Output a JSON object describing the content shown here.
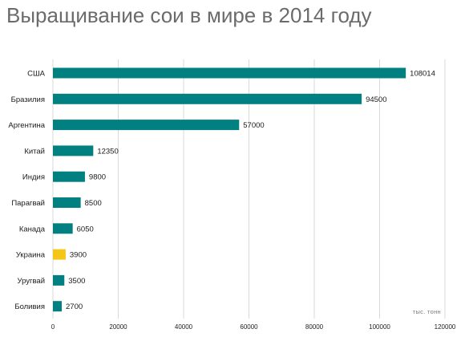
{
  "chart_data": {
    "type": "bar",
    "orientation": "horizontal",
    "title": "Выращивание сои в мире в 2014 году",
    "unit_label": "тыс. тонн",
    "categories": [
      "США",
      "Бразилия",
      "Аргентина",
      "Китай",
      "Индия",
      "Парагвай",
      "Канада",
      "Украина",
      "Уругвай",
      "Боливия"
    ],
    "values": [
      108014,
      94500,
      57000,
      12350,
      9800,
      8500,
      6050,
      3900,
      3500,
      2700
    ],
    "value_labels": [
      "108014",
      "94500",
      "57000",
      "12350",
      "9800",
      "8500",
      "6050",
      "3900",
      "3500",
      "2700"
    ],
    "xlim": [
      0,
      120000
    ],
    "x_ticks": [
      0,
      20000,
      40000,
      60000,
      80000,
      100000,
      120000
    ],
    "x_tick_labels": [
      "0",
      "20000",
      "40000",
      "60000",
      "80000",
      "100000",
      "120000"
    ],
    "grid": true,
    "colors": {
      "default": "#008080",
      "highlight": "#f5c518"
    },
    "highlight_category": "Украина"
  }
}
